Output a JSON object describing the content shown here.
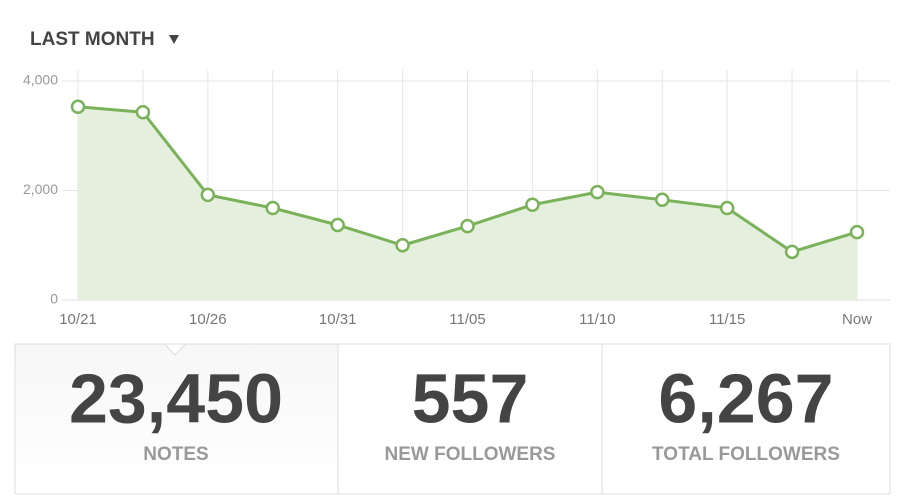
{
  "header": {
    "title": "LAST MONTH"
  },
  "chart_data": {
    "type": "area",
    "categories": [
      "10/21",
      null,
      "10/26",
      null,
      "10/31",
      null,
      "11/05",
      null,
      "11/10",
      null,
      "11/15",
      null,
      "Now"
    ],
    "series": [
      {
        "color": "#7ab25a",
        "values": [
          3530,
          3430,
          1920,
          1680,
          1370,
          1000,
          1350,
          1740,
          1970,
          1830,
          1680,
          880,
          1240
        ]
      }
    ],
    "ylim": [
      0,
      4000
    ],
    "yticks": [
      0,
      {
        "value": 2000,
        "label": "2,000"
      },
      {
        "value": 4000,
        "label": "4,000"
      }
    ],
    "grid": true
  },
  "stats": [
    {
      "value": "23,450",
      "label": "NOTES"
    },
    {
      "value": "557",
      "label": "NEW FOLLOWERS"
    },
    {
      "value": "6,267",
      "label": "TOTAL FOLLOWERS"
    }
  ]
}
